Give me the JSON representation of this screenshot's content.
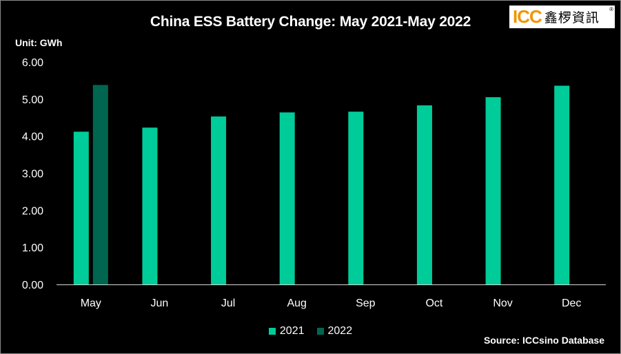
{
  "title": "China ESS Battery Change:  May 2021-May 2022",
  "unit_label": "Unit: GWh",
  "source": "Source: ICCsino Database",
  "logo": {
    "text_en": "ICC",
    "text_cn": "鑫椤資訊",
    "mark": "®"
  },
  "colors": {
    "s2021": "#00cc99",
    "s2022": "#006650",
    "axis": "#d9d9d9",
    "background": "#000000"
  },
  "chart_data": {
    "type": "bar",
    "title": "China ESS Battery Change:  May 2021-May 2022",
    "ylabel": "Unit: GWh",
    "xlabel": "",
    "ylim": [
      0,
      6
    ],
    "yticks": [
      "0.00",
      "1.00",
      "2.00",
      "3.00",
      "4.00",
      "5.00",
      "6.00"
    ],
    "categories": [
      "May",
      "Jun",
      "Jul",
      "Aug",
      "Sep",
      "Oct",
      "Nov",
      "Dec"
    ],
    "series": [
      {
        "name": "2021",
        "values": [
          4.12,
          4.23,
          4.53,
          4.64,
          4.66,
          4.83,
          5.05,
          5.36
        ]
      },
      {
        "name": "2022",
        "values": [
          5.38,
          null,
          null,
          null,
          null,
          null,
          null,
          null
        ]
      }
    ],
    "grid": false,
    "legend_position": "bottom"
  }
}
